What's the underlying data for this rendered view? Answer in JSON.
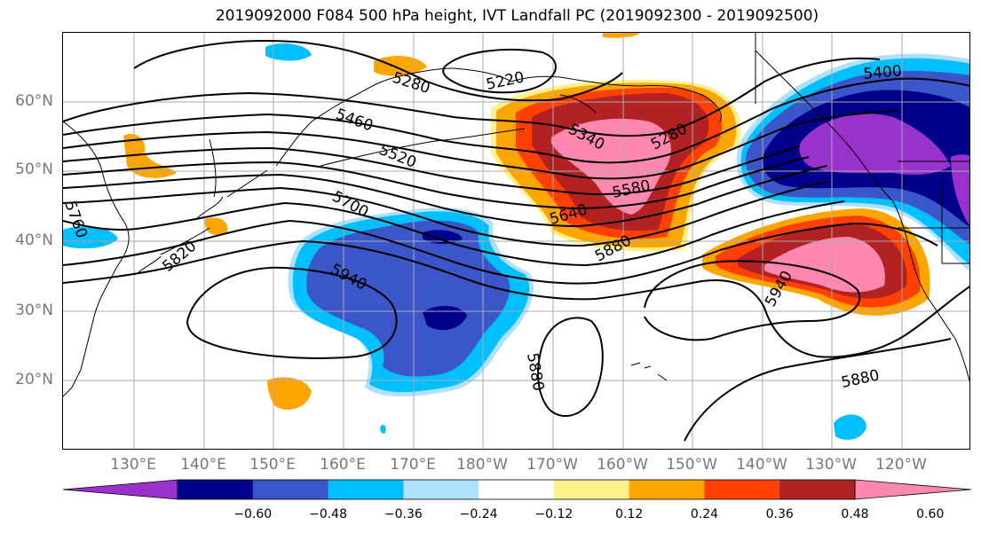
{
  "title": "2019092000 F084 500 hPa height, IVT Landfall PC (2019092300 - 2019092500)",
  "lat_labels": [
    "60°N",
    "50°N",
    "40°N",
    "30°N",
    "20°N"
  ],
  "lon_labels": [
    "130°E",
    "140°E",
    "150°E",
    "160°E",
    "170°E",
    "180°W",
    "170°W",
    "160°W",
    "150°W",
    "140°W",
    "130°W",
    "120°W"
  ],
  "contour_labels": [
    "5280",
    "5220",
    "5460",
    "5520",
    "5400",
    "5340",
    "5280",
    "5580",
    "5640",
    "5760",
    "5700",
    "5820",
    "5880",
    "5940",
    "5940",
    "5880",
    "5880"
  ],
  "colorbar": {
    "colors": [
      "#9932cc",
      "#00008b",
      "#3a56c8",
      "#00bfff",
      "#aee0ff",
      "#ffffff",
      "#fff08a",
      "#ffa500",
      "#ff4000",
      "#b22222",
      "#ff88b0"
    ],
    "ticks": [
      "−0.60",
      "−0.48",
      "−0.36",
      "−0.24",
      "−0.12",
      "0.12",
      "0.24",
      "0.36",
      "0.48",
      "0.60"
    ],
    "extend": "both"
  },
  "colors": {
    "gridline": "#aaaaaa",
    "contour": "#000000",
    "tick_label": "#777777"
  }
}
